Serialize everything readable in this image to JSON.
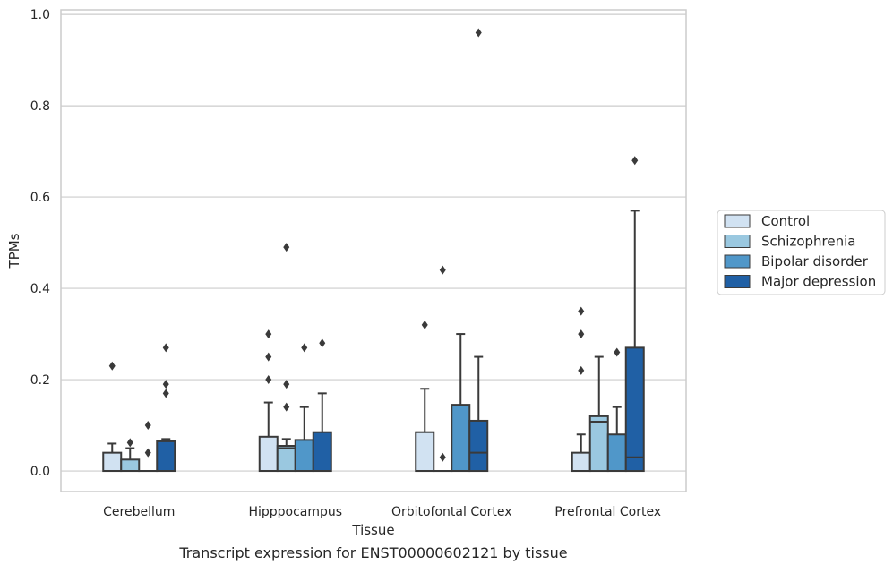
{
  "chart_data": {
    "type": "box",
    "title": "",
    "caption": "Transcript expression for ENST00000602121 by tissue",
    "xlabel": "Tissue",
    "ylabel": "TPMs",
    "ylim": [
      -0.045,
      1.01
    ],
    "yticks": [
      0.0,
      0.2,
      0.4,
      0.6,
      0.8,
      1.0
    ],
    "ytick_labels": [
      "0.0",
      "0.2",
      "0.4",
      "0.6",
      "0.8",
      "1.0"
    ],
    "grid": true,
    "legend_position": "right",
    "categories": [
      "Cerebellum",
      "Hipppocampus",
      "Orbitofontal Cortex",
      "Prefrontal Cortex"
    ],
    "series": [
      {
        "name": "Control",
        "color": "#d1e2f2",
        "boxes": [
          {
            "q1": 0.0,
            "median": 0.0,
            "q3": 0.04,
            "whisker_low": 0.0,
            "whisker_high": 0.06,
            "outliers": [
              0.23
            ]
          },
          {
            "q1": 0.0,
            "median": 0.0,
            "q3": 0.075,
            "whisker_low": 0.0,
            "whisker_high": 0.15,
            "outliers": [
              0.2,
              0.25,
              0.3
            ]
          },
          {
            "q1": 0.0,
            "median": 0.0,
            "q3": 0.085,
            "whisker_low": 0.0,
            "whisker_high": 0.18,
            "outliers": [
              0.32
            ]
          },
          {
            "q1": 0.0,
            "median": 0.0,
            "q3": 0.04,
            "whisker_low": 0.0,
            "whisker_high": 0.08,
            "outliers": [
              0.22,
              0.3,
              0.35
            ]
          }
        ]
      },
      {
        "name": "Schizophrenia",
        "color": "#9ac8e0",
        "boxes": [
          {
            "q1": 0.0,
            "median": 0.0,
            "q3": 0.025,
            "whisker_low": 0.0,
            "whisker_high": 0.05,
            "outliers": [
              0.062
            ]
          },
          {
            "q1": 0.0,
            "median": 0.05,
            "q3": 0.055,
            "whisker_low": 0.0,
            "whisker_high": 0.07,
            "outliers": [
              0.14,
              0.19,
              0.49
            ]
          },
          {
            "q1": 0.0,
            "median": 0.0,
            "q3": 0.0,
            "whisker_low": 0.0,
            "whisker_high": 0.0,
            "outliers": [
              0.03,
              0.44
            ]
          },
          {
            "q1": 0.0,
            "median": 0.108,
            "q3": 0.12,
            "whisker_low": 0.0,
            "whisker_high": 0.25,
            "outliers": []
          }
        ]
      },
      {
        "name": "Bipolar disorder",
        "color": "#5097c9",
        "boxes": [
          {
            "q1": 0.0,
            "median": 0.0,
            "q3": 0.0,
            "whisker_low": 0.0,
            "whisker_high": 0.0,
            "outliers": [
              0.04,
              0.1
            ]
          },
          {
            "q1": 0.0,
            "median": 0.0,
            "q3": 0.068,
            "whisker_low": 0.0,
            "whisker_high": 0.14,
            "outliers": [
              0.27
            ]
          },
          {
            "q1": 0.0,
            "median": 0.0,
            "q3": 0.145,
            "whisker_low": 0.0,
            "whisker_high": 0.3,
            "outliers": []
          },
          {
            "q1": 0.0,
            "median": 0.0,
            "q3": 0.08,
            "whisker_low": 0.0,
            "whisker_high": 0.14,
            "outliers": [
              0.26
            ]
          }
        ]
      },
      {
        "name": "Major depression",
        "color": "#2060a5",
        "boxes": [
          {
            "q1": 0.0,
            "median": 0.0,
            "q3": 0.065,
            "whisker_low": 0.0,
            "whisker_high": 0.07,
            "outliers": [
              0.17,
              0.19,
              0.27
            ]
          },
          {
            "q1": 0.0,
            "median": 0.0,
            "q3": 0.085,
            "whisker_low": 0.0,
            "whisker_high": 0.17,
            "outliers": [
              0.28
            ]
          },
          {
            "q1": 0.0,
            "median": 0.04,
            "q3": 0.11,
            "whisker_low": 0.0,
            "whisker_high": 0.25,
            "outliers": [
              0.96
            ]
          },
          {
            "q1": 0.0,
            "median": 0.03,
            "q3": 0.27,
            "whisker_low": 0.0,
            "whisker_high": 0.57,
            "outliers": [
              0.68
            ]
          }
        ]
      }
    ]
  }
}
